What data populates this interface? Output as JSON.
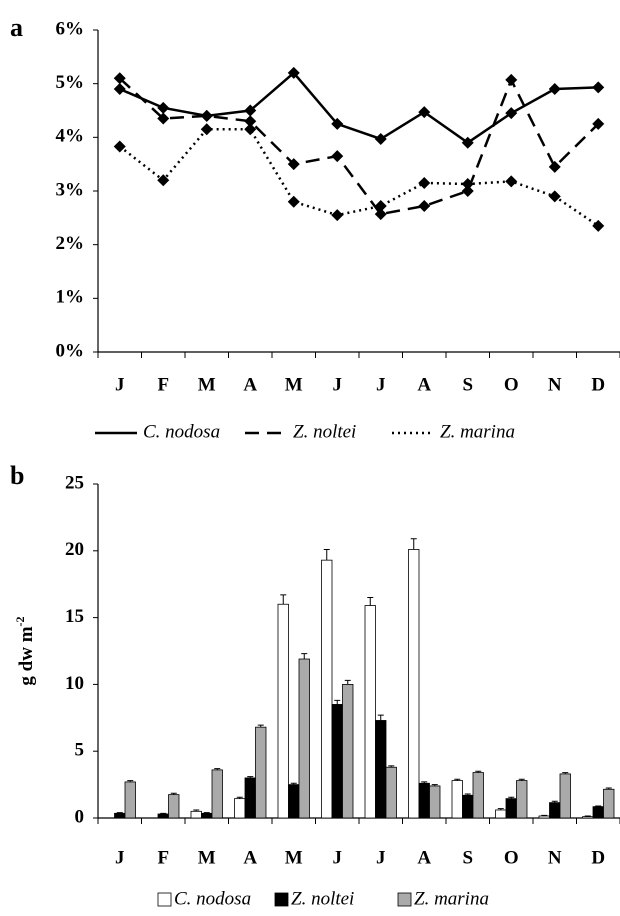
{
  "chart_data": [
    {
      "type": "line",
      "label": "a",
      "categories": [
        "J",
        "F",
        "M",
        "A",
        "M",
        "J",
        "J",
        "A",
        "S",
        "O",
        "N",
        "D"
      ],
      "ylim": [
        0,
        6
      ],
      "yticks": [
        {
          "value": 0,
          "label": "0%"
        },
        {
          "value": 1,
          "label": "1%"
        },
        {
          "value": 2,
          "label": "2%"
        },
        {
          "value": 3,
          "label": "3%"
        },
        {
          "value": 4,
          "label": "4%"
        },
        {
          "value": 5,
          "label": "5%"
        },
        {
          "value": 6,
          "label": "6%"
        }
      ],
      "series": [
        {
          "name": "C. nodosa",
          "color": "#000000",
          "dash": "solid",
          "values": [
            4.9,
            4.55,
            4.4,
            4.5,
            5.2,
            4.25,
            3.97,
            4.47,
            3.9,
            4.45,
            4.9,
            4.93
          ]
        },
        {
          "name": "Z. noltei",
          "color": "#000000",
          "dash": "dashed",
          "values": [
            5.1,
            4.35,
            4.4,
            4.3,
            3.5,
            3.65,
            2.57,
            2.72,
            3.0,
            5.07,
            3.45,
            4.25
          ]
        },
        {
          "name": "Z. marina",
          "color": "#000000",
          "dash": "dotted",
          "values": [
            3.83,
            3.2,
            4.15,
            4.15,
            2.8,
            2.55,
            2.72,
            3.15,
            3.13,
            3.18,
            2.9,
            2.35
          ]
        }
      ]
    },
    {
      "type": "bar",
      "label": "b",
      "ylabel": "g dw m",
      "ylabel_superscript": "-2",
      "categories": [
        "J",
        "F",
        "M",
        "A",
        "M",
        "J",
        "J",
        "A",
        "S",
        "O",
        "N",
        "D"
      ],
      "ylim": [
        0,
        25
      ],
      "yticks": [
        0,
        5,
        10,
        15,
        20,
        25
      ],
      "series": [
        {
          "name": "C. nodosa",
          "color": "#ffffff",
          "values": [
            0,
            0,
            0.5,
            1.45,
            16.0,
            19.3,
            15.9,
            20.1,
            2.8,
            0.6,
            0.15,
            0.1
          ],
          "errors": [
            0,
            0,
            0.1,
            0.1,
            0.7,
            0.8,
            0.6,
            0.8,
            0.1,
            0.1,
            0.05,
            0.05
          ]
        },
        {
          "name": "Z. noltei",
          "color": "#000000",
          "values": [
            0.35,
            0.3,
            0.35,
            3.0,
            2.5,
            8.5,
            7.3,
            2.6,
            1.7,
            1.45,
            1.15,
            0.85
          ],
          "errors": [
            0.05,
            0.05,
            0.05,
            0.1,
            0.1,
            0.3,
            0.4,
            0.1,
            0.1,
            0.1,
            0.1,
            0.05
          ]
        },
        {
          "name": "Z. marina",
          "color": "#aaaaaa",
          "values": [
            2.7,
            1.75,
            3.6,
            6.8,
            11.9,
            10.0,
            3.8,
            2.4,
            3.4,
            2.8,
            3.3,
            2.15
          ],
          "errors": [
            0.1,
            0.1,
            0.1,
            0.15,
            0.4,
            0.3,
            0.1,
            0.1,
            0.1,
            0.1,
            0.1,
            0.1
          ]
        }
      ]
    }
  ]
}
